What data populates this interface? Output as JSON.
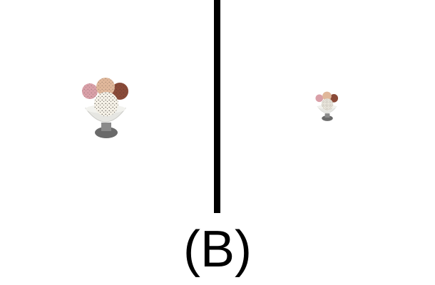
{
  "panel": {
    "label": "(B)"
  },
  "images": {
    "left_object": "ice-cream-sundae-icon",
    "right_object": "ice-cream-sundae-icon"
  },
  "colors": {
    "background": "#ffffff",
    "divider": "#000000",
    "scoop_pink": "#d9a0a8",
    "scoop_peach": "#e0b79a",
    "scoop_chocolate": "#8a4a38",
    "scoop_vanilla": "#f4f0e6",
    "bowl": "#e8e8e4",
    "stand": "#6e6e6e"
  }
}
